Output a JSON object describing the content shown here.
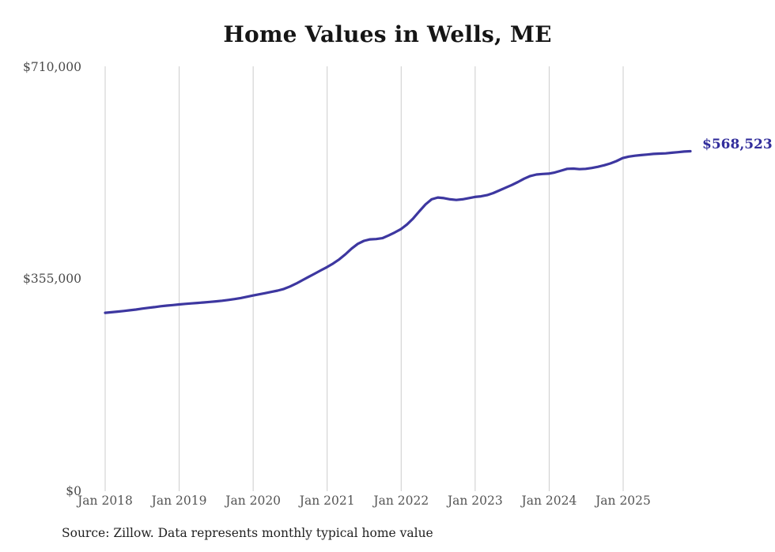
{
  "title": "Home Values in Wells, ME",
  "source_note": "Source: Zillow. Data represents monthly typical home value",
  "end_label": "$568,523",
  "colors": {
    "line": "#3d37a0",
    "end_label": "#322e9c",
    "gridline": "#cccccc",
    "title": "#151515",
    "y_axis_label": "#4a4a4a",
    "x_axis_label": "#555555",
    "source": "#222222"
  },
  "chart_data": {
    "type": "line",
    "title": "Home Values in Wells, ME",
    "xlabel": "",
    "ylabel": "",
    "ylim": [
      0,
      710000
    ],
    "grid": "vertical-yearly-gridlines",
    "legend": "none",
    "line_style": "smoothed, dark indigo, ~3px",
    "yticks": [
      {
        "value": 710000,
        "label": "$710,000"
      },
      {
        "value": 355000,
        "label": "$355,000"
      },
      {
        "value": 0,
        "label": "$0"
      }
    ],
    "xticks": [
      "Jan 2018",
      "Jan 2019",
      "Jan 2020",
      "Jan 2021",
      "Jan 2022",
      "Jan 2023",
      "Jan 2024",
      "Jan 2025"
    ],
    "x_start": "2018-01",
    "x_end": "2025-12",
    "x_interval": "month",
    "final_value": 568523,
    "final_value_label": "$568,523",
    "values": [
      298000,
      299000,
      300000,
      301000,
      302200,
      303500,
      305000,
      306300,
      307600,
      309000,
      310000,
      311000,
      312000,
      313000,
      313800,
      314500,
      315300,
      316200,
      317200,
      318300,
      319600,
      321000,
      322800,
      324800,
      327000,
      329000,
      331000,
      333000,
      335200,
      338000,
      342000,
      347000,
      352500,
      358000,
      363500,
      369000,
      374500,
      380500,
      387500,
      396000,
      405500,
      413500,
      418500,
      421000,
      421500,
      423000,
      427500,
      432500,
      438000,
      446000,
      456000,
      468000,
      479500,
      488000,
      491000,
      490000,
      488000,
      487000,
      488000,
      490000,
      492000,
      493000,
      495000,
      498500,
      503000,
      507500,
      512000,
      517000,
      522500,
      527000,
      529500,
      530500,
      531000,
      533000,
      536000,
      539000,
      539500,
      538500,
      539000,
      540500,
      542500,
      545000,
      548000,
      552000,
      557000,
      559500,
      561000,
      562000,
      563000,
      564000,
      564500,
      565000,
      566000,
      567000,
      568000,
      568523
    ]
  }
}
